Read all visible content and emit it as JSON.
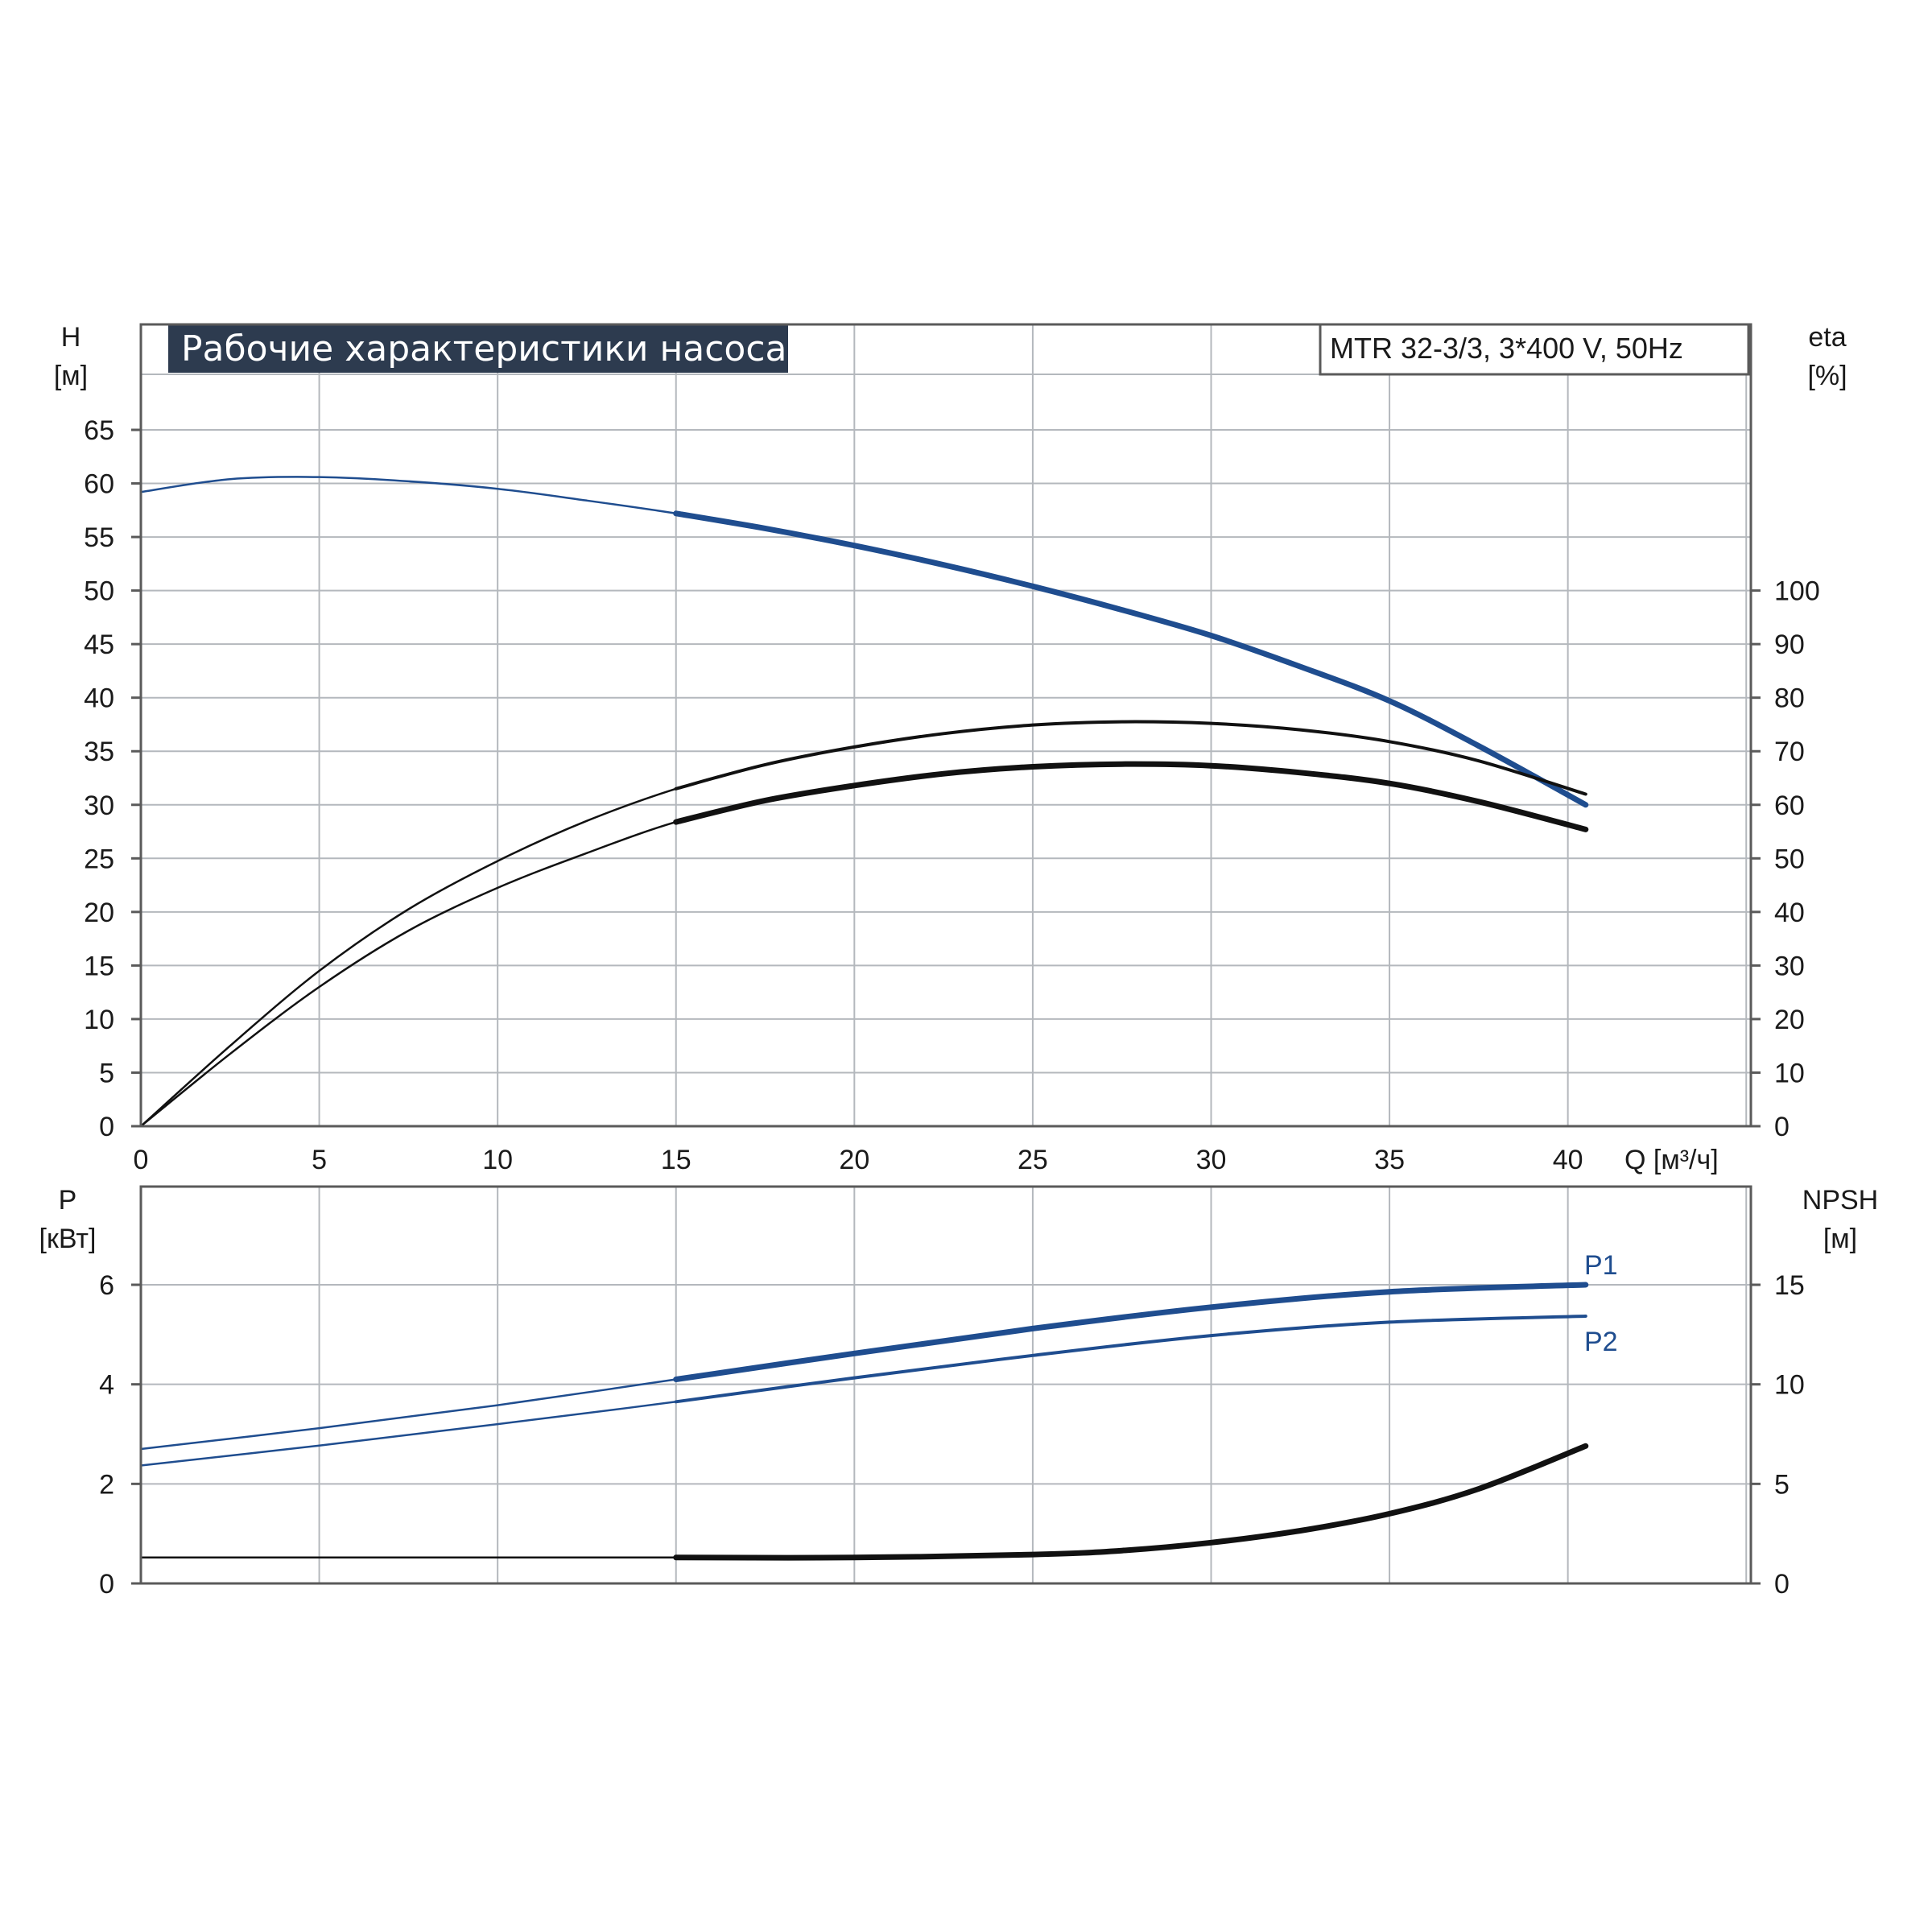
{
  "colors": {
    "title_bg": "#2d3b4f",
    "blue": "#1f4d8f",
    "blue_light": "#2f67b0",
    "black": "#111111",
    "grid": "#b4b8bd"
  },
  "title": "Рабочие характеристики насоса",
  "model": "MTR 32-3/3, 3*400 V, 50Hz",
  "chart_data": [
    {
      "type": "line",
      "name": "head-efficiency",
      "x_label": "Q [м³/ч]",
      "x_ticks": [
        "0",
        "5",
        "10",
        "15",
        "20",
        "25",
        "30",
        "35",
        "40"
      ],
      "xlim": [
        0,
        45
      ],
      "left_axis": {
        "label_top": "H",
        "label_unit": "[м]",
        "ticks": [
          "0",
          "5",
          "10",
          "15",
          "20",
          "25",
          "30",
          "35",
          "40",
          "45",
          "50",
          "55",
          "60",
          "65"
        ],
        "ylim": [
          0,
          70
        ]
      },
      "right_axis": {
        "label_top": "eta",
        "label_unit": "[%]",
        "ticks": [
          "0",
          "10",
          "20",
          "30",
          "40",
          "50",
          "60",
          "70",
          "80",
          "90",
          "100"
        ],
        "ylim": [
          0,
          140
        ]
      },
      "series": [
        {
          "axis": "left",
          "role": "H",
          "color": "blue",
          "x": [
            0,
            2.5,
            5,
            7.5,
            10,
            12.5,
            15,
            17.5,
            20,
            22.5,
            25,
            27.5,
            30,
            32.5,
            35,
            37.5,
            40.5
          ],
          "y": [
            59.2,
            60.4,
            60.6,
            60.2,
            59.5,
            58.4,
            57.2,
            55.8,
            54.2,
            52.4,
            50.4,
            48.2,
            45.8,
            42.9,
            39.7,
            35.5,
            30.0
          ],
          "bold_from": 15
        },
        {
          "axis": "right",
          "role": "eta",
          "color": "black",
          "x": [
            0,
            2.5,
            5,
            7.5,
            10,
            12.5,
            15,
            17.5,
            20,
            22.5,
            25,
            27.5,
            30,
            32.5,
            35,
            37.5,
            40.5
          ],
          "y": [
            0,
            15,
            29,
            40.5,
            49.5,
            57,
            63,
            67.5,
            70.8,
            73.3,
            74.9,
            75.5,
            75.2,
            74,
            71.8,
            68.2,
            62
          ],
          "bold_from": 15,
          "weight": "thin"
        },
        {
          "axis": "right",
          "role": "eta",
          "color": "black",
          "x": [
            0,
            2.5,
            5,
            7.5,
            10,
            12.5,
            15,
            17.5,
            20,
            22.5,
            25,
            27.5,
            30,
            32.5,
            35,
            37.5,
            40.5
          ],
          "y": [
            0,
            13.5,
            26,
            36.5,
            44.5,
            51,
            56.8,
            60.8,
            63.6,
            65.8,
            67.1,
            67.6,
            67.3,
            66,
            64,
            60.6,
            55.4
          ],
          "bold_from": 15,
          "weight": "thick"
        }
      ]
    },
    {
      "type": "line",
      "name": "power-npsh",
      "left_axis": {
        "label_top": "P",
        "label_unit": "[кВт]",
        "ticks": [
          "0",
          "2",
          "4",
          "6"
        ],
        "ylim": [
          0,
          8
        ]
      },
      "right_axis": {
        "label_top": "NPSH",
        "label_unit": "[м]",
        "ticks": [
          "0",
          "5",
          "10",
          "15"
        ],
        "ylim": [
          0,
          20
        ]
      },
      "xlim": [
        0,
        45
      ],
      "series": [
        {
          "axis": "left",
          "name": "P1",
          "color": "blue",
          "x": [
            0,
            5,
            10,
            15,
            20,
            25,
            30,
            35,
            40.5
          ],
          "y": [
            2.7,
            3.12,
            3.58,
            4.1,
            4.62,
            5.12,
            5.55,
            5.86,
            6.0
          ],
          "bold_from": 15
        },
        {
          "axis": "left",
          "name": "P2",
          "color": "blue",
          "x": [
            0,
            5,
            10,
            15,
            20,
            25,
            30,
            35,
            40.5
          ],
          "y": [
            2.37,
            2.77,
            3.2,
            3.65,
            4.13,
            4.58,
            4.98,
            5.25,
            5.37
          ],
          "bold_from": 15,
          "weight": "thin"
        },
        {
          "axis": "right",
          "role": "NPSH",
          "color": "black",
          "x": [
            0,
            5,
            10,
            15,
            20,
            25,
            27.5,
            30,
            32.5,
            35,
            37.5,
            40.5
          ],
          "y": [
            1.3,
            1.3,
            1.3,
            1.3,
            1.3,
            1.45,
            1.65,
            2.05,
            2.65,
            3.5,
            4.75,
            6.9
          ],
          "bold_from": 15
        }
      ]
    }
  ]
}
